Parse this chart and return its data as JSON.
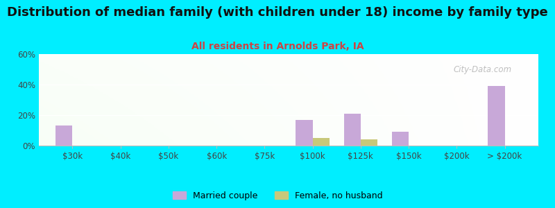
{
  "title": "Distribution of median family (with children under 18) income by family type",
  "subtitle": "All residents in Arnolds Park, IA",
  "categories": [
    "$30k",
    "$40k",
    "$50k",
    "$60k",
    "$75k",
    "$100k",
    "$125k",
    "$150k",
    "$200k",
    "> $200k"
  ],
  "married_couple": [
    13,
    0,
    0,
    0,
    0,
    17,
    21,
    9,
    0,
    39
  ],
  "female_no_husband": [
    0,
    0,
    0,
    0,
    0,
    5,
    4,
    0,
    0,
    0
  ],
  "married_color": "#c8a8d8",
  "female_color": "#c8c87a",
  "title_fontsize": 13,
  "subtitle_fontsize": 10,
  "subtitle_color": "#cc4444",
  "background_color": "#00eeff",
  "ylim": [
    0,
    60
  ],
  "yticks": [
    0,
    20,
    40,
    60
  ],
  "ytick_labels": [
    "0%",
    "20%",
    "40%",
    "60%"
  ],
  "watermark": "City-Data.com",
  "bar_width": 0.35
}
